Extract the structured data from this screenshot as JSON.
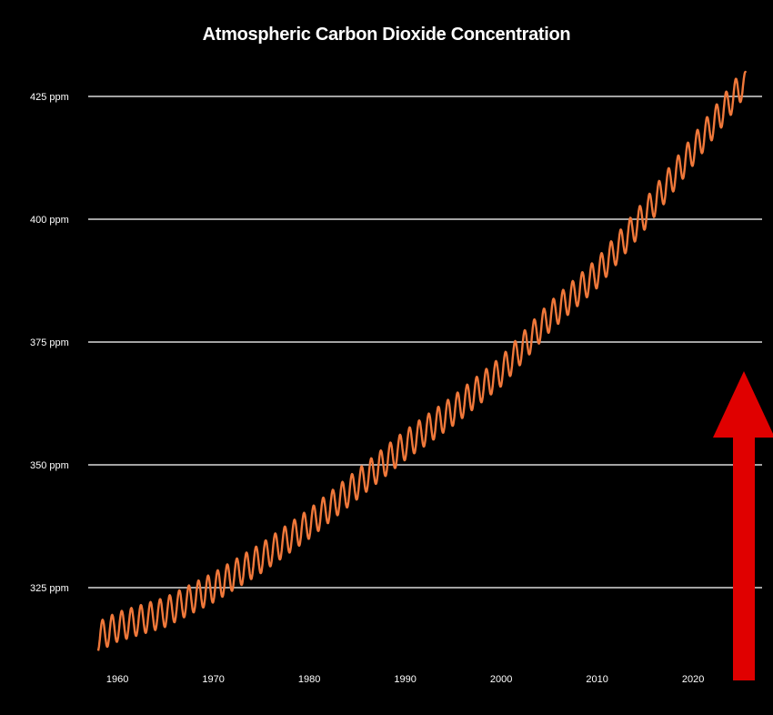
{
  "chart_data": {
    "type": "line",
    "title": "Atmospheric Carbon Dioxide Concentration",
    "xlabel": "",
    "ylabel": "",
    "xlim": [
      1958,
      2025.5
    ],
    "ylim": [
      310,
      430
    ],
    "yticks": [
      {
        "value": 325,
        "label": "325 ppm"
      },
      {
        "value": 350,
        "label": "350 ppm"
      },
      {
        "value": 375,
        "label": "375 ppm"
      },
      {
        "value": 400,
        "label": "400 ppm"
      },
      {
        "value": 425,
        "label": "425 ppm"
      }
    ],
    "xticks": [
      {
        "value": 1960,
        "label": "1960"
      },
      {
        "value": 1970,
        "label": "1970"
      },
      {
        "value": 1980,
        "label": "1980"
      },
      {
        "value": 1990,
        "label": "1990"
      },
      {
        "value": 2000,
        "label": "2000"
      },
      {
        "value": 2010,
        "label": "2010"
      },
      {
        "value": 2020,
        "label": "2020"
      }
    ],
    "grid": "horizontal",
    "series": [
      {
        "color": "#f0783a",
        "seasonal_amplitude_ppm": 3,
        "trend": {
          "x": [
            1958,
            1960,
            1965,
            1970,
            1975,
            1980,
            1985,
            1990,
            1995,
            2000,
            2005,
            2010,
            2015,
            2020,
            2025
          ],
          "y": [
            315,
            317,
            320,
            325,
            331,
            338,
            346,
            354,
            361,
            369,
            380,
            389,
            401,
            414,
            427
          ]
        }
      }
    ],
    "annotation": {
      "shape": "up-arrow",
      "color": "#e00000"
    }
  }
}
